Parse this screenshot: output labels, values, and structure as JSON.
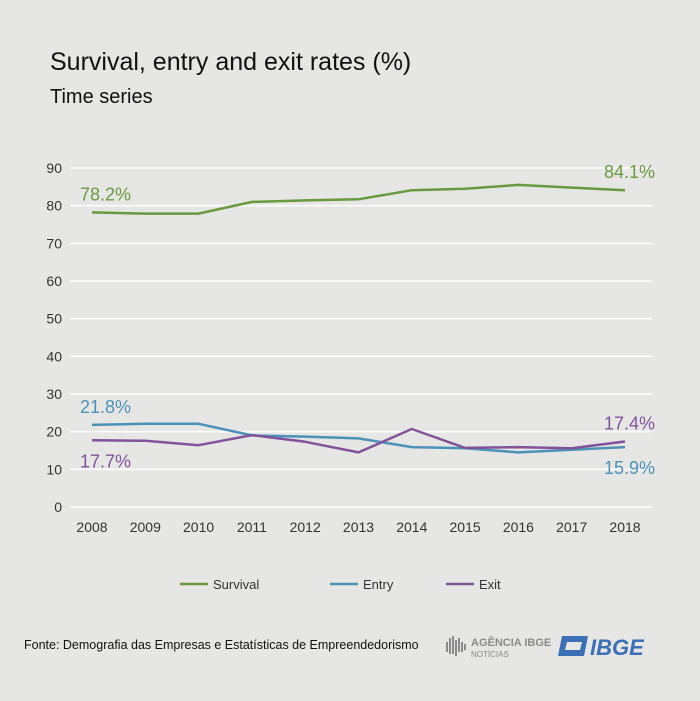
{
  "header": {
    "title": "Survival, entry and exit rates (%)",
    "subtitle": "Time series"
  },
  "footer": {
    "source": "Fonte: Demografia das Empresas e Estatísticas de Empreendedorismo",
    "logo_agencia": "AGÊNCIA IBGE NOTÍCIAS",
    "logo_ibge": "IBGE"
  },
  "chart_data": {
    "type": "line",
    "title": "Survival, entry and exit rates (%)",
    "subtitle": "Time series",
    "xlabel": "",
    "ylabel": "",
    "categories": [
      "2008",
      "2009",
      "2010",
      "2011",
      "2012",
      "2013",
      "2014",
      "2015",
      "2016",
      "2017",
      "2018"
    ],
    "ylim": [
      0,
      90
    ],
    "yticks": [
      0,
      10,
      20,
      30,
      40,
      50,
      60,
      70,
      80,
      90
    ],
    "grid": true,
    "legend_position": "bottom",
    "series": [
      {
        "name": "Survival",
        "color": "#6a9a3f",
        "values": [
          78.2,
          77.9,
          77.9,
          81.0,
          81.4,
          81.7,
          84.1,
          84.5,
          85.5,
          84.8,
          84.1
        ],
        "labels": [
          {
            "index": 0,
            "text": "78.2%",
            "pos": "above"
          },
          {
            "index": 10,
            "text": "84.1%",
            "pos": "above"
          }
        ]
      },
      {
        "name": "Entry",
        "color": "#4b92b8",
        "values": [
          21.8,
          22.1,
          22.1,
          19.0,
          18.7,
          18.2,
          15.9,
          15.6,
          14.5,
          15.2,
          15.9
        ],
        "labels": [
          {
            "index": 0,
            "text": "21.8%",
            "pos": "above"
          },
          {
            "index": 10,
            "text": "15.9%",
            "pos": "below"
          }
        ]
      },
      {
        "name": "Exit",
        "color": "#82529a",
        "values": [
          17.7,
          17.6,
          16.4,
          19.1,
          17.3,
          14.5,
          20.7,
          15.7,
          15.9,
          15.6,
          17.4
        ],
        "labels": [
          {
            "index": 0,
            "text": "17.7%",
            "pos": "below"
          },
          {
            "index": 10,
            "text": "17.4%",
            "pos": "above"
          }
        ]
      }
    ]
  }
}
